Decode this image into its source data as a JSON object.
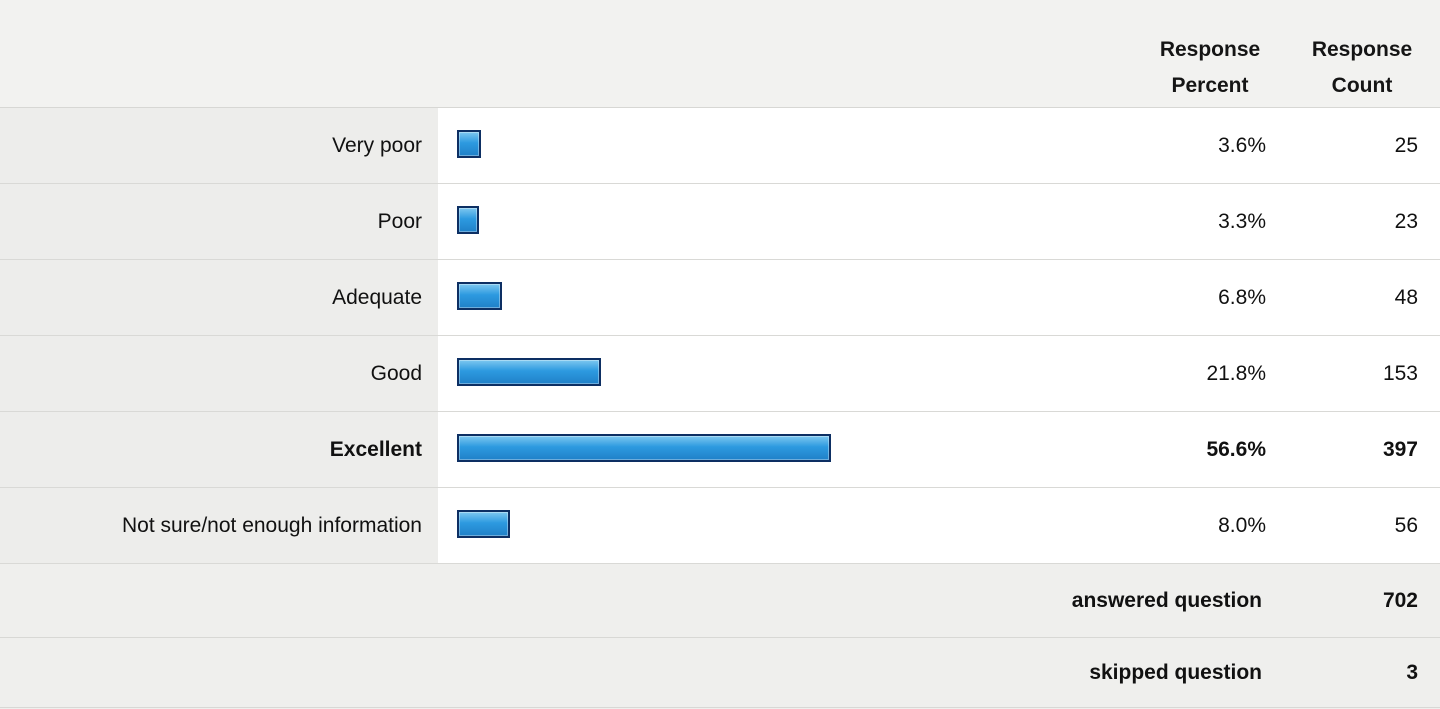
{
  "chart_data": {
    "type": "bar",
    "orientation": "horizontal",
    "columns": {
      "percent_label": [
        "Response",
        "Percent"
      ],
      "count_label": [
        "Response",
        "Count"
      ]
    },
    "categories": [
      "Very poor",
      "Poor",
      "Adequate",
      "Good",
      "Excellent",
      "Not sure/not enough information"
    ],
    "percent_values": [
      3.6,
      3.3,
      6.8,
      21.8,
      56.6,
      8.0
    ],
    "percent_labels": [
      "3.6%",
      "3.3%",
      "6.8%",
      "21.8%",
      "56.6%",
      "8.0%"
    ],
    "counts": [
      "25",
      "23",
      "48",
      "153",
      "397",
      "56"
    ],
    "highlighted_category": "Excellent",
    "bar_color": "#2d9ae0",
    "bar_border_color": "#0d2f63"
  },
  "summary": {
    "answered_label": "answered question",
    "answered_value": "702",
    "skipped_label": "skipped question",
    "skipped_value": "3"
  }
}
